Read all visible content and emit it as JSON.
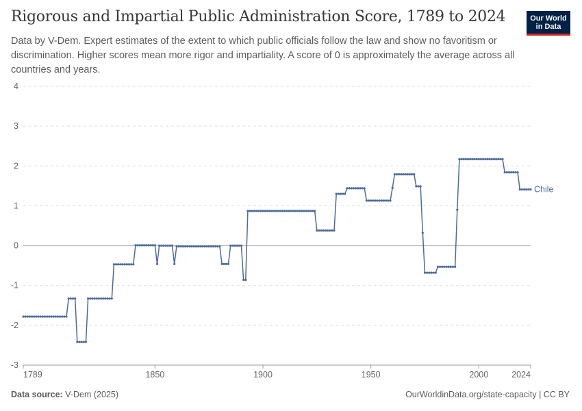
{
  "header": {
    "title": "Rigorous and Impartial Public Administration Score, 1789 to 2024",
    "subtitle": "Data by V-Dem. Expert estimates of the extent to which public officials follow the law and show no favoritism or discrimination. Higher scores mean more rigor and impartiality. A score of 0 is approximately the average across all countries and years."
  },
  "logo": {
    "line1": "Our World",
    "line2": "in Data",
    "bg_color": "#002147",
    "accent_color": "#ce261e"
  },
  "footer": {
    "source_label": "Data source:",
    "source_value": "V-Dem (2025)",
    "url": "OurWorldinData.org/state-capacity | CC BY"
  },
  "chart_data": {
    "type": "line",
    "title": "Rigorous and Impartial Public Administration Score, 1789 to 2024",
    "xlabel": "",
    "ylabel": "",
    "xlim": [
      1789,
      2024
    ],
    "ylim": [
      -3,
      4
    ],
    "x_ticks": [
      1789,
      1850,
      1900,
      1950,
      2000,
      2024
    ],
    "y_ticks": [
      -3,
      -2,
      -1,
      0,
      1,
      2,
      3,
      4
    ],
    "grid": "horizontal dashed",
    "series_color": "#4c6a9c",
    "series": [
      {
        "name": "Chile",
        "segments": [
          [
            1789,
            1809,
            -1.78
          ],
          [
            1810,
            1813,
            -1.33
          ],
          [
            1814,
            1818,
            -2.42
          ],
          [
            1819,
            1830,
            -1.33
          ],
          [
            1831,
            1840,
            -0.47
          ],
          [
            1841,
            1850,
            0.01
          ],
          [
            1851,
            1851,
            -0.46
          ],
          [
            1852,
            1858,
            0.0
          ],
          [
            1859,
            1859,
            -0.46
          ],
          [
            1860,
            1880,
            -0.02
          ],
          [
            1881,
            1884,
            -0.46
          ],
          [
            1885,
            1890,
            0.0
          ],
          [
            1891,
            1892,
            -0.86
          ],
          [
            1893,
            1924,
            0.87
          ],
          [
            1925,
            1933,
            0.38
          ],
          [
            1934,
            1938,
            1.3
          ],
          [
            1939,
            1947,
            1.44
          ],
          [
            1948,
            1959,
            1.13
          ],
          [
            1960,
            1960,
            1.45
          ],
          [
            1961,
            1970,
            1.79
          ],
          [
            1971,
            1973,
            1.49
          ],
          [
            1974,
            1974,
            0.32
          ],
          [
            1975,
            1980,
            -0.68
          ],
          [
            1981,
            1989,
            -0.53
          ],
          [
            1990,
            1990,
            0.9
          ],
          [
            1991,
            2011,
            2.17
          ],
          [
            2012,
            2018,
            1.84
          ],
          [
            2019,
            2024,
            1.41
          ]
        ]
      }
    ]
  }
}
